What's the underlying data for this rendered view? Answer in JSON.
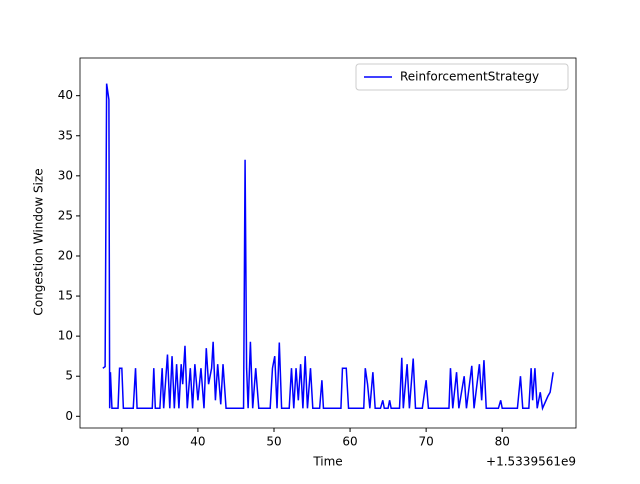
{
  "chart_data": {
    "type": "line",
    "xlabel": "Time",
    "ylabel": "Congestion Window Size",
    "x_offset_label": "+1.5339561e9",
    "xlim": [
      24.5,
      89.7
    ],
    "ylim": [
      -1.46,
      44.7
    ],
    "xticks": [
      30,
      40,
      50,
      60,
      70,
      80
    ],
    "yticks": [
      0,
      5,
      10,
      15,
      20,
      25,
      30,
      35,
      40
    ],
    "legend": "upper right",
    "x": [
      27.5,
      27.8,
      28,
      28.3,
      28.4,
      28.5,
      28.7,
      29.5,
      29.7,
      30,
      30.2,
      31.5,
      31.8,
      32,
      34,
      34.2,
      34.4,
      35,
      35.3,
      35.5,
      36,
      36.3,
      36.6,
      36.9,
      37.2,
      37.5,
      37.8,
      38,
      38.3,
      38.6,
      39,
      39.3,
      39.6,
      40,
      40.4,
      40.8,
      41.1,
      41.4,
      41.8,
      42,
      42.3,
      42.6,
      43,
      43.3,
      43.7,
      44,
      46,
      46.2,
      46.4,
      46.6,
      46.9,
      47.2,
      47.6,
      48,
      49.5,
      49.8,
      50.1,
      50.4,
      50.7,
      51,
      52,
      52.3,
      52.6,
      52.9,
      53.2,
      53.5,
      53.8,
      54.1,
      54.4,
      54.8,
      55.1,
      56,
      56.3,
      56.5,
      58.8,
      59,
      59.5,
      59.8,
      61.8,
      62,
      62.3,
      62.6,
      63,
      63.3,
      64,
      64.3,
      64.5,
      65,
      65.2,
      65.4,
      66.5,
      66.8,
      67,
      67.5,
      67.8,
      68.3,
      68.6,
      69.5,
      70,
      70.3,
      73,
      73.2,
      73.5,
      74,
      74.3,
      75,
      75.3,
      76,
      76.3,
      77,
      77.3,
      77.6,
      77.9,
      79.5,
      79.8,
      80,
      82,
      82.4,
      82.7,
      83.5,
      83.8,
      84,
      84.3,
      84.6,
      85,
      85.3,
      86,
      86.3,
      86.7
    ],
    "series": [
      {
        "name": "ReinforcementStrategy",
        "color": "#0000ff",
        "values": [
          6,
          6.2,
          41.5,
          39.5,
          1,
          5.5,
          1,
          1,
          6,
          6,
          1,
          1,
          6,
          1,
          1,
          6,
          1,
          1,
          6,
          1,
          7.7,
          1,
          7.5,
          1,
          6.5,
          1,
          6.5,
          4,
          8.8,
          1,
          6,
          1,
          6.5,
          2,
          6,
          1,
          8.5,
          4,
          6,
          9.3,
          2,
          6.5,
          1.5,
          6.5,
          1,
          1,
          1,
          32,
          6,
          1,
          9.3,
          1,
          6,
          1,
          1,
          6,
          7.5,
          1,
          9.2,
          1,
          1,
          6,
          1,
          6,
          2,
          6.5,
          1,
          7.5,
          1,
          6,
          1,
          1,
          4.5,
          1,
          1,
          6,
          6,
          1,
          1,
          6,
          4,
          1,
          5.5,
          1,
          1,
          2,
          1,
          1,
          2,
          1,
          1,
          7.3,
          1,
          6.5,
          1,
          7.2,
          1,
          1,
          4.5,
          1,
          1,
          6,
          1,
          5.5,
          1,
          5,
          1,
          6.3,
          1,
          6.5,
          2,
          7,
          1,
          1,
          2,
          1,
          1,
          5,
          1,
          1,
          6,
          2,
          6,
          1,
          3,
          1,
          2.5,
          3,
          5.5
        ]
      }
    ]
  }
}
